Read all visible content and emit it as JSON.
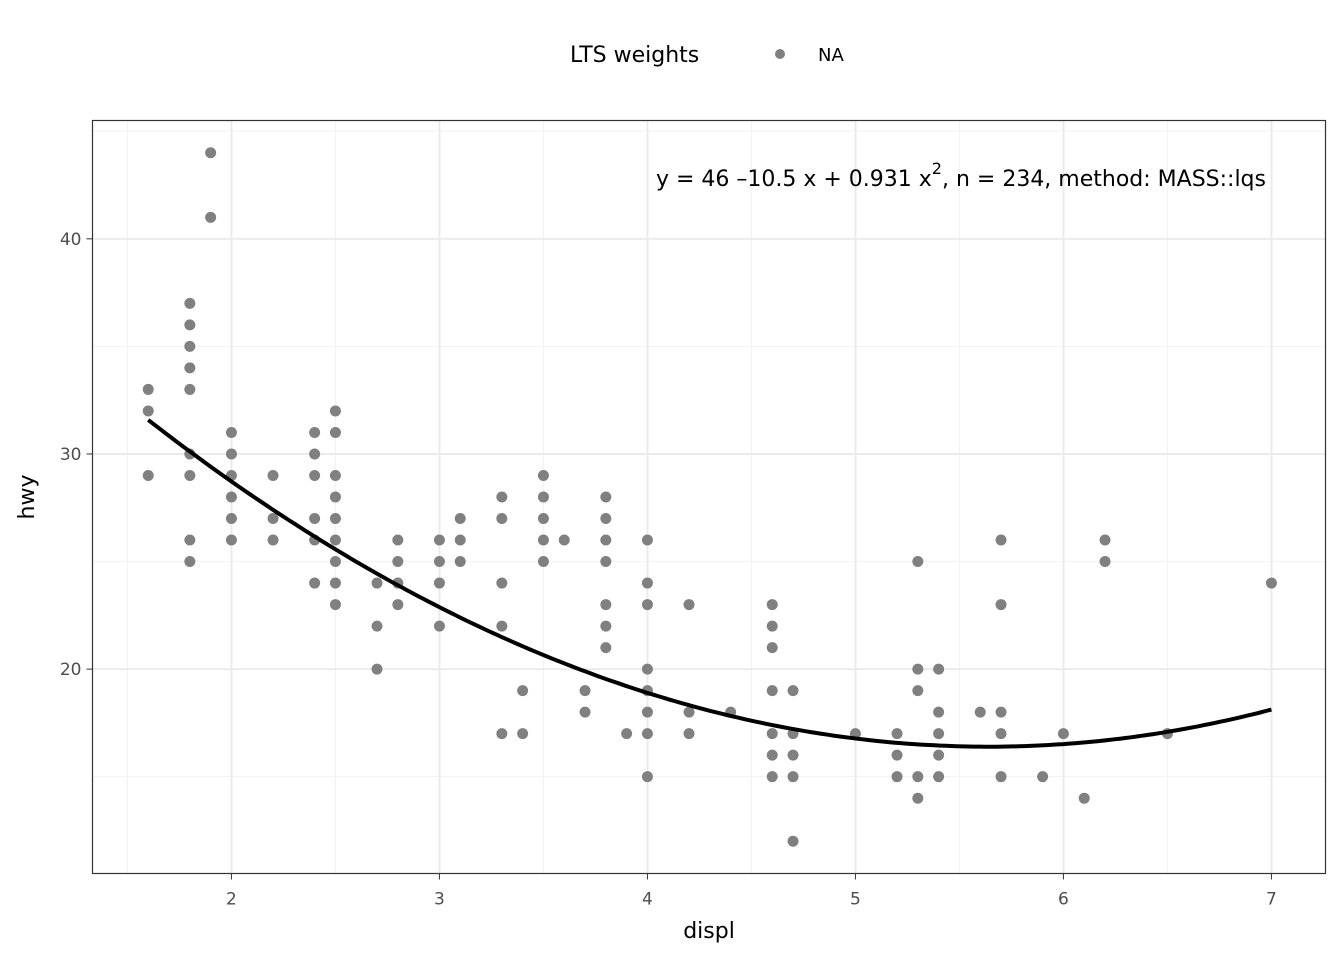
{
  "chart_data": {
    "type": "scatter",
    "xlabel": "displ",
    "ylabel": "hwy",
    "xlim": [
      1.332,
      7.26
    ],
    "ylim": [
      10.5,
      45.5
    ],
    "x_ticks": [
      2,
      3,
      4,
      5,
      6,
      7
    ],
    "y_ticks": [
      20,
      30,
      40
    ],
    "grid": true,
    "point_color": "#808080",
    "line_color": "#000000",
    "legend": {
      "title": "LTS weights",
      "entries": [
        "NA"
      ],
      "placement": "top"
    },
    "annotation": {
      "main": "y = 46 –10.5 x + 0.931 x",
      "sup": "2",
      "rest": ", n = 234, method: MASS::lqs"
    },
    "fit": {
      "intercept": 46,
      "b1": -10.5,
      "b2": 0.931,
      "x_range": [
        1.6,
        7.0
      ]
    },
    "points": [
      [
        1.6,
        33
      ],
      [
        1.6,
        32
      ],
      [
        1.6,
        29
      ],
      [
        1.8,
        37
      ],
      [
        1.8,
        36
      ],
      [
        1.8,
        35
      ],
      [
        1.8,
        34
      ],
      [
        1.8,
        33
      ],
      [
        1.8,
        30
      ],
      [
        1.8,
        29
      ],
      [
        1.8,
        26
      ],
      [
        1.8,
        25
      ],
      [
        1.9,
        44
      ],
      [
        1.9,
        41
      ],
      [
        2.0,
        31
      ],
      [
        2.0,
        30
      ],
      [
        2.0,
        29
      ],
      [
        2.0,
        28
      ],
      [
        2.0,
        27
      ],
      [
        2.0,
        26
      ],
      [
        2.2,
        29
      ],
      [
        2.2,
        27
      ],
      [
        2.2,
        26
      ],
      [
        2.4,
        31
      ],
      [
        2.4,
        30
      ],
      [
        2.4,
        29
      ],
      [
        2.4,
        27
      ],
      [
        2.4,
        26
      ],
      [
        2.4,
        24
      ],
      [
        2.5,
        32
      ],
      [
        2.5,
        31
      ],
      [
        2.5,
        29
      ],
      [
        2.5,
        28
      ],
      [
        2.5,
        27
      ],
      [
        2.5,
        26
      ],
      [
        2.5,
        25
      ],
      [
        2.5,
        24
      ],
      [
        2.5,
        23
      ],
      [
        2.7,
        24
      ],
      [
        2.7,
        22
      ],
      [
        2.7,
        20
      ],
      [
        2.8,
        26
      ],
      [
        2.8,
        25
      ],
      [
        2.8,
        24
      ],
      [
        2.8,
        23
      ],
      [
        3.0,
        26
      ],
      [
        3.0,
        25
      ],
      [
        3.0,
        24
      ],
      [
        3.0,
        22
      ],
      [
        3.1,
        27
      ],
      [
        3.1,
        26
      ],
      [
        3.1,
        25
      ],
      [
        3.3,
        28
      ],
      [
        3.3,
        27
      ],
      [
        3.3,
        24
      ],
      [
        3.3,
        22
      ],
      [
        3.3,
        17
      ],
      [
        3.4,
        19
      ],
      [
        3.4,
        17
      ],
      [
        3.5,
        29
      ],
      [
        3.5,
        28
      ],
      [
        3.5,
        27
      ],
      [
        3.5,
        26
      ],
      [
        3.5,
        25
      ],
      [
        3.6,
        26
      ],
      [
        3.7,
        19
      ],
      [
        3.7,
        18
      ],
      [
        3.8,
        28
      ],
      [
        3.8,
        27
      ],
      [
        3.8,
        26
      ],
      [
        3.8,
        25
      ],
      [
        3.8,
        23
      ],
      [
        3.8,
        22
      ],
      [
        3.8,
        21
      ],
      [
        3.9,
        17
      ],
      [
        4.0,
        26
      ],
      [
        4.0,
        24
      ],
      [
        4.0,
        23
      ],
      [
        4.0,
        20
      ],
      [
        4.0,
        19
      ],
      [
        4.0,
        18
      ],
      [
        4.0,
        17
      ],
      [
        4.0,
        15
      ],
      [
        4.2,
        23
      ],
      [
        4.2,
        18
      ],
      [
        4.2,
        17
      ],
      [
        4.4,
        18
      ],
      [
        4.6,
        23
      ],
      [
        4.6,
        22
      ],
      [
        4.6,
        21
      ],
      [
        4.6,
        19
      ],
      [
        4.6,
        17
      ],
      [
        4.6,
        16
      ],
      [
        4.6,
        15
      ],
      [
        4.7,
        19
      ],
      [
        4.7,
        17
      ],
      [
        4.7,
        16
      ],
      [
        4.7,
        15
      ],
      [
        4.7,
        12
      ],
      [
        5.0,
        17
      ],
      [
        5.2,
        17
      ],
      [
        5.2,
        16
      ],
      [
        5.2,
        15
      ],
      [
        5.3,
        25
      ],
      [
        5.3,
        20
      ],
      [
        5.3,
        19
      ],
      [
        5.3,
        15
      ],
      [
        5.3,
        14
      ],
      [
        5.4,
        20
      ],
      [
        5.4,
        18
      ],
      [
        5.4,
        17
      ],
      [
        5.4,
        16
      ],
      [
        5.4,
        15
      ],
      [
        5.6,
        18
      ],
      [
        5.7,
        26
      ],
      [
        5.7,
        23
      ],
      [
        5.7,
        18
      ],
      [
        5.7,
        17
      ],
      [
        5.7,
        15
      ],
      [
        5.9,
        15
      ],
      [
        6.0,
        17
      ],
      [
        6.1,
        14
      ],
      [
        6.2,
        26
      ],
      [
        6.2,
        25
      ],
      [
        6.5,
        17
      ],
      [
        7.0,
        24
      ]
    ]
  }
}
